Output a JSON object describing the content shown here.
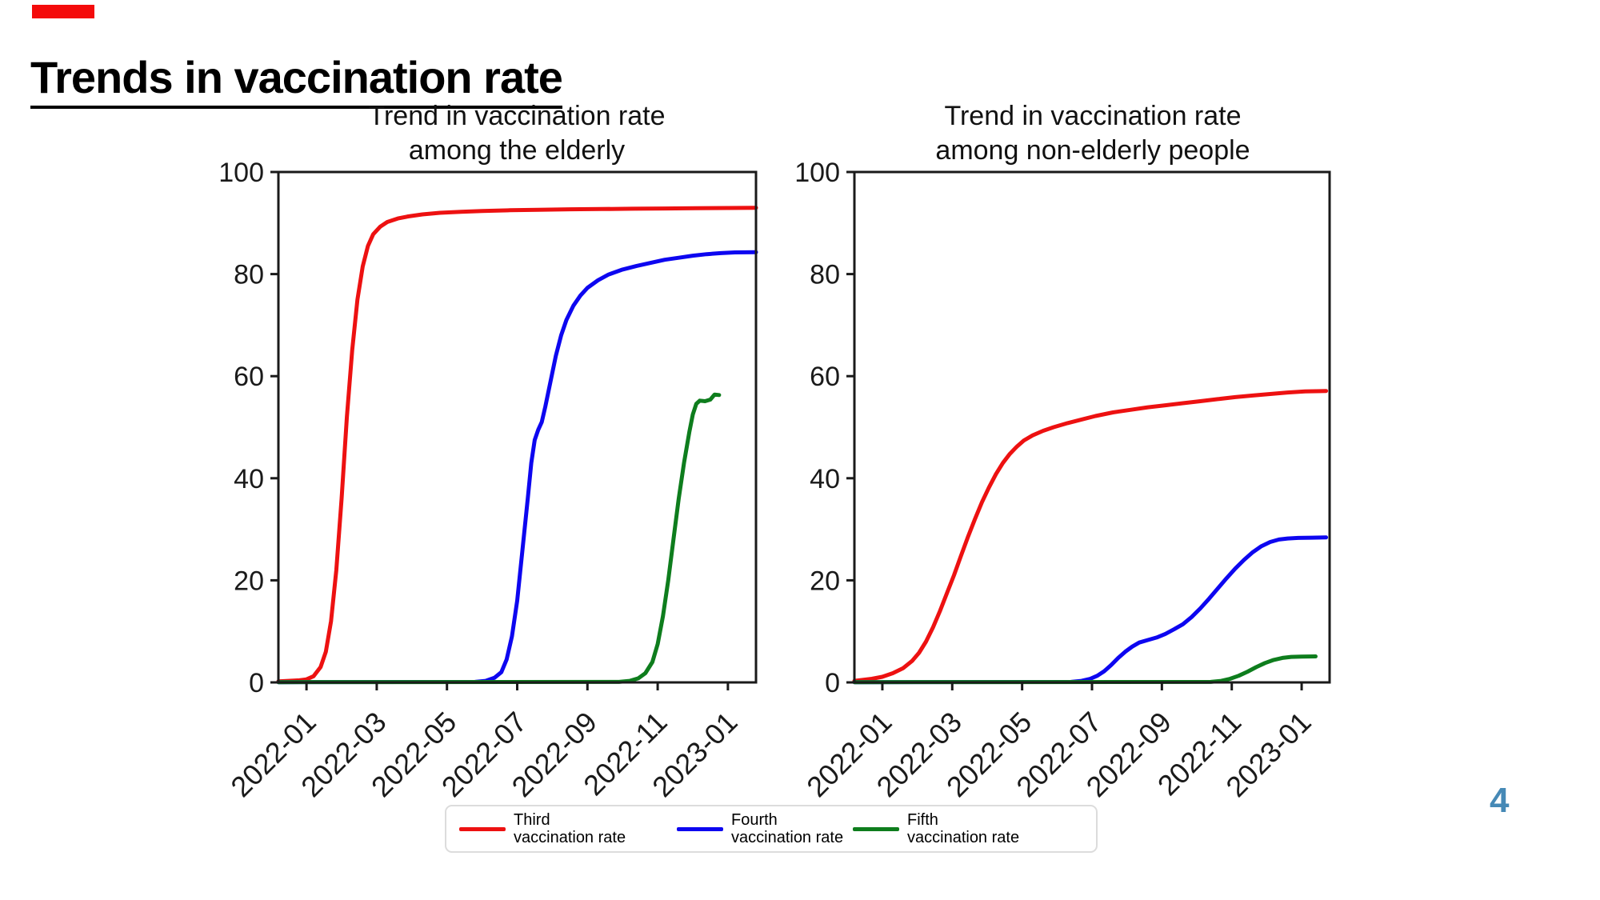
{
  "slide": {
    "title": "Trends in vaccination rate",
    "page_number": "4",
    "marker_color": "#f40b0b",
    "page_number_color": "#4689b6"
  },
  "legend": {
    "items": [
      {
        "line1": "Third",
        "line2": "vaccination rate",
        "color": "#ed1111"
      },
      {
        "line1": "Fourth",
        "line2": "vaccination rate",
        "color": "#0d06f0"
      },
      {
        "line1": "Fifth",
        "line2": "vaccination rate",
        "color": "#0e7d1d"
      }
    ]
  },
  "chart_data": [
    {
      "type": "line",
      "title_line1": "Trend in vaccination rate",
      "title_line2": "among the elderly",
      "xlim": [
        0.2,
        13.8
      ],
      "ylim": [
        0,
        100
      ],
      "grid": false,
      "legend_position": "below-figure",
      "y_ticks": [
        0,
        20,
        40,
        60,
        80,
        100
      ],
      "x_tick_months": [
        1,
        3,
        5,
        7,
        9,
        11,
        13
      ],
      "x_tick_labels": [
        "2022-01",
        "2022-03",
        "2022-05",
        "2022-07",
        "2022-09",
        "2022-11",
        "2023-01"
      ],
      "series": [
        {
          "name": "Third vaccination rate",
          "color": "#ed1111",
          "points": [
            [
              0.2,
              0.2
            ],
            [
              0.8,
              0.4
            ],
            [
              1.0,
              0.6
            ],
            [
              1.2,
              1.2
            ],
            [
              1.4,
              3
            ],
            [
              1.55,
              6
            ],
            [
              1.7,
              12
            ],
            [
              1.85,
              22
            ],
            [
              2.0,
              36
            ],
            [
              2.15,
              52
            ],
            [
              2.3,
              65
            ],
            [
              2.45,
              75
            ],
            [
              2.6,
              81.5
            ],
            [
              2.75,
              85.5
            ],
            [
              2.9,
              87.8
            ],
            [
              3.1,
              89.3
            ],
            [
              3.3,
              90.2
            ],
            [
              3.6,
              90.9
            ],
            [
              3.9,
              91.3
            ],
            [
              4.3,
              91.7
            ],
            [
              4.8,
              92.0
            ],
            [
              5.4,
              92.2
            ],
            [
              6.0,
              92.35
            ],
            [
              6.8,
              92.5
            ],
            [
              7.6,
              92.6
            ],
            [
              8.5,
              92.7
            ],
            [
              9.4,
              92.75
            ],
            [
              10.3,
              92.8
            ],
            [
              11.2,
              92.85
            ],
            [
              12.1,
              92.9
            ],
            [
              13.0,
              92.95
            ],
            [
              13.8,
              93.0
            ]
          ]
        },
        {
          "name": "Fourth vaccination rate",
          "color": "#0d06f0",
          "points": [
            [
              0.2,
              0.05
            ],
            [
              5.8,
              0.1
            ],
            [
              6.1,
              0.3
            ],
            [
              6.35,
              0.9
            ],
            [
              6.55,
              2
            ],
            [
              6.7,
              4.5
            ],
            [
              6.85,
              9
            ],
            [
              7.0,
              16
            ],
            [
              7.15,
              26
            ],
            [
              7.3,
              36
            ],
            [
              7.4,
              43
            ],
            [
              7.5,
              47.5
            ],
            [
              7.6,
              49.5
            ],
            [
              7.7,
              51
            ],
            [
              7.8,
              54
            ],
            [
              7.95,
              59
            ],
            [
              8.1,
              64
            ],
            [
              8.25,
              68
            ],
            [
              8.4,
              71
            ],
            [
              8.6,
              73.8
            ],
            [
              8.8,
              75.8
            ],
            [
              9.0,
              77.3
            ],
            [
              9.3,
              78.8
            ],
            [
              9.6,
              79.9
            ],
            [
              10.0,
              80.9
            ],
            [
              10.4,
              81.6
            ],
            [
              10.8,
              82.2
            ],
            [
              11.2,
              82.8
            ],
            [
              11.6,
              83.2
            ],
            [
              12.0,
              83.6
            ],
            [
              12.4,
              83.9
            ],
            [
              12.8,
              84.1
            ],
            [
              13.2,
              84.25
            ],
            [
              13.8,
              84.3
            ]
          ]
        },
        {
          "name": "Fifth vaccination rate",
          "color": "#0e7d1d",
          "points": [
            [
              0.2,
              0.05
            ],
            [
              9.9,
              0.1
            ],
            [
              10.2,
              0.3
            ],
            [
              10.45,
              0.8
            ],
            [
              10.65,
              1.8
            ],
            [
              10.85,
              4
            ],
            [
              11.0,
              7.5
            ],
            [
              11.15,
              13
            ],
            [
              11.3,
              20
            ],
            [
              11.45,
              28
            ],
            [
              11.6,
              36
            ],
            [
              11.75,
              43
            ],
            [
              11.9,
              49
            ],
            [
              12.0,
              52.5
            ],
            [
              12.1,
              54.6
            ],
            [
              12.2,
              55.2
            ],
            [
              12.35,
              55.1
            ],
            [
              12.5,
              55.4
            ],
            [
              12.62,
              56.4
            ],
            [
              12.75,
              56.3
            ]
          ]
        }
      ]
    },
    {
      "type": "line",
      "title_line1": "Trend in vaccination rate",
      "title_line2": "among non-elderly people",
      "xlim": [
        0.2,
        13.8
      ],
      "ylim": [
        0,
        100
      ],
      "grid": false,
      "legend_position": "below-figure",
      "y_ticks": [
        0,
        20,
        40,
        60,
        80,
        100
      ],
      "x_tick_months": [
        1,
        3,
        5,
        7,
        9,
        11,
        13
      ],
      "x_tick_labels": [
        "2022-01",
        "2022-03",
        "2022-05",
        "2022-07",
        "2022-09",
        "2022-11",
        "2023-01"
      ],
      "series": [
        {
          "name": "Third vaccination rate",
          "color": "#ed1111",
          "points": [
            [
              0.2,
              0.3
            ],
            [
              0.7,
              0.7
            ],
            [
              1.0,
              1.1
            ],
            [
              1.3,
              1.8
            ],
            [
              1.6,
              2.8
            ],
            [
              1.85,
              4.2
            ],
            [
              2.05,
              5.8
            ],
            [
              2.25,
              8
            ],
            [
              2.45,
              10.8
            ],
            [
              2.65,
              14
            ],
            [
              2.85,
              17.5
            ],
            [
              3.05,
              21
            ],
            [
              3.25,
              24.8
            ],
            [
              3.45,
              28.5
            ],
            [
              3.65,
              32
            ],
            [
              3.85,
              35.3
            ],
            [
              4.05,
              38.2
            ],
            [
              4.25,
              40.8
            ],
            [
              4.45,
              43
            ],
            [
              4.65,
              44.8
            ],
            [
              4.85,
              46.2
            ],
            [
              5.05,
              47.4
            ],
            [
              5.3,
              48.4
            ],
            [
              5.6,
              49.3
            ],
            [
              5.9,
              50
            ],
            [
              6.3,
              50.8
            ],
            [
              6.7,
              51.5
            ],
            [
              7.1,
              52.2
            ],
            [
              7.6,
              52.9
            ],
            [
              8.1,
              53.4
            ],
            [
              8.6,
              53.9
            ],
            [
              9.1,
              54.3
            ],
            [
              9.6,
              54.7
            ],
            [
              10.1,
              55.1
            ],
            [
              10.6,
              55.5
            ],
            [
              11.1,
              55.9
            ],
            [
              11.6,
              56.2
            ],
            [
              12.1,
              56.5
            ],
            [
              12.6,
              56.8
            ],
            [
              13.1,
              57
            ],
            [
              13.7,
              57.1
            ]
          ]
        },
        {
          "name": "Fourth vaccination rate",
          "color": "#0d06f0",
          "points": [
            [
              0.2,
              0.05
            ],
            [
              6.4,
              0.1
            ],
            [
              6.7,
              0.3
            ],
            [
              6.95,
              0.7
            ],
            [
              7.15,
              1.3
            ],
            [
              7.35,
              2.2
            ],
            [
              7.55,
              3.4
            ],
            [
              7.75,
              4.8
            ],
            [
              7.95,
              6
            ],
            [
              8.15,
              7
            ],
            [
              8.35,
              7.8
            ],
            [
              8.6,
              8.3
            ],
            [
              8.85,
              8.8
            ],
            [
              9.1,
              9.5
            ],
            [
              9.35,
              10.4
            ],
            [
              9.6,
              11.4
            ],
            [
              9.85,
              12.8
            ],
            [
              10.1,
              14.5
            ],
            [
              10.35,
              16.4
            ],
            [
              10.6,
              18.4
            ],
            [
              10.85,
              20.4
            ],
            [
              11.1,
              22.3
            ],
            [
              11.35,
              24
            ],
            [
              11.6,
              25.5
            ],
            [
              11.85,
              26.7
            ],
            [
              12.1,
              27.5
            ],
            [
              12.35,
              28
            ],
            [
              12.6,
              28.2
            ],
            [
              12.9,
              28.3
            ],
            [
              13.3,
              28.35
            ],
            [
              13.7,
              28.4
            ]
          ]
        },
        {
          "name": "Fifth vaccination rate",
          "color": "#0e7d1d",
          "points": [
            [
              0.2,
              0.05
            ],
            [
              10.4,
              0.1
            ],
            [
              10.7,
              0.3
            ],
            [
              10.95,
              0.7
            ],
            [
              11.2,
              1.3
            ],
            [
              11.45,
              2.1
            ],
            [
              11.7,
              3
            ],
            [
              11.95,
              3.8
            ],
            [
              12.2,
              4.4
            ],
            [
              12.45,
              4.8
            ],
            [
              12.7,
              5
            ],
            [
              13.0,
              5.05
            ],
            [
              13.4,
              5.1
            ]
          ]
        }
      ]
    }
  ]
}
